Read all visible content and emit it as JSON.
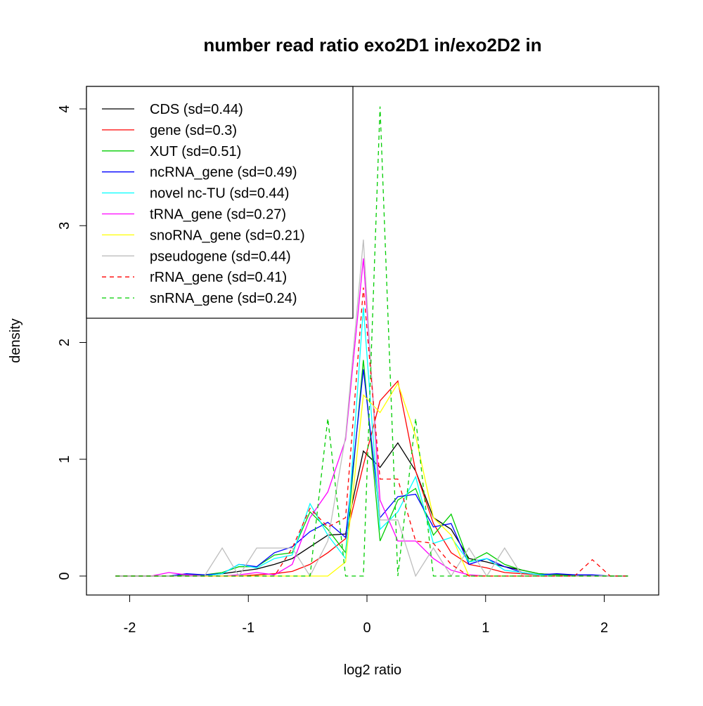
{
  "chart_data": {
    "type": "line",
    "title": "number read ratio exo2D1 in/exo2D2 in",
    "xlabel": "log2 ratio",
    "ylabel": "density",
    "xlim": [
      -2.35,
      2.45
    ],
    "ylim": [
      -0.17,
      4.2
    ],
    "xticks": [
      -2,
      -1,
      0,
      1,
      2
    ],
    "xtick_labels": [
      "-2",
      "-1",
      "0",
      "1",
      "2"
    ],
    "yticks": [
      0,
      1,
      2,
      3,
      4
    ],
    "ytick_labels": [
      "0",
      "1",
      "2",
      "3",
      "4"
    ],
    "grid": false,
    "legend_position": "top-left",
    "x": [
      -2.12,
      -1.97,
      -1.82,
      -1.67,
      -1.52,
      -1.37,
      -1.22,
      -1.08,
      -0.93,
      -0.78,
      -0.63,
      -0.48,
      -0.33,
      -0.18,
      -0.03,
      0.11,
      0.26,
      0.41,
      0.56,
      0.71,
      0.86,
      1.01,
      1.16,
      1.31,
      1.45,
      1.6,
      1.75,
      1.9,
      2.05,
      2.2
    ],
    "series": [
      {
        "name": "CDS (sd=0.44)",
        "color": "#000000",
        "dash": false,
        "values": [
          0,
          0,
          0,
          0,
          0,
          0,
          0.02,
          0.04,
          0.06,
          0.1,
          0.15,
          0.25,
          0.35,
          0.36,
          1.07,
          0.93,
          1.14,
          0.9,
          0.5,
          0.4,
          0.15,
          0.12,
          0.08,
          0.05,
          0.02,
          0.01,
          0.01,
          0,
          0,
          0
        ]
      },
      {
        "name": "gene (sd=0.3)",
        "color": "#ff0000",
        "dash": false,
        "values": [
          0,
          0,
          0,
          0,
          0,
          0,
          0,
          0,
          0.01,
          0.02,
          0.04,
          0.1,
          0.2,
          0.32,
          0.95,
          1.5,
          1.67,
          0.9,
          0.45,
          0.2,
          0.1,
          0.07,
          0.03,
          0.02,
          0.01,
          0,
          0,
          0,
          0,
          0
        ]
      },
      {
        "name": "XUT (sd=0.51)",
        "color": "#00cd00",
        "dash": false,
        "values": [
          0,
          0,
          0,
          0,
          0.01,
          0.01,
          0.03,
          0.08,
          0.08,
          0.18,
          0.2,
          0.55,
          0.4,
          0.2,
          1.85,
          0.3,
          0.65,
          0.75,
          0.35,
          0.53,
          0.12,
          0.2,
          0.1,
          0.05,
          0.02,
          0.01,
          0,
          0,
          0,
          0
        ]
      },
      {
        "name": "ncRNA_gene (sd=0.49)",
        "color": "#0000ff",
        "dash": false,
        "values": [
          0,
          0,
          0,
          0,
          0.02,
          0.01,
          0.02,
          0.1,
          0.08,
          0.2,
          0.25,
          0.38,
          0.46,
          0.33,
          1.77,
          0.5,
          0.68,
          0.7,
          0.42,
          0.45,
          0.1,
          0.15,
          0.08,
          0.03,
          0.01,
          0.02,
          0.01,
          0.01,
          0,
          0
        ]
      },
      {
        "name": "novel nc-TU (sd=0.44)",
        "color": "#00ffff",
        "dash": false,
        "values": [
          0,
          0,
          0,
          0,
          0,
          0,
          0.02,
          0.1,
          0.07,
          0.15,
          0.18,
          0.62,
          0.35,
          0.15,
          2.3,
          0.4,
          0.55,
          0.85,
          0.28,
          0.33,
          0.12,
          0.15,
          0.05,
          0.03,
          0.01,
          0,
          0,
          0,
          0,
          0
        ]
      },
      {
        "name": "tRNA_gene (sd=0.27)",
        "color": "#ff00ff",
        "dash": false,
        "values": [
          0,
          0,
          0,
          0.03,
          0.01,
          0,
          0,
          0.01,
          0.03,
          0.01,
          0.1,
          0.5,
          0.72,
          1.17,
          2.72,
          0.65,
          0.3,
          0.3,
          0.15,
          0.05,
          0.01,
          0,
          0,
          0,
          0,
          0,
          0,
          0,
          0,
          0
        ]
      },
      {
        "name": "snoRNA_gene (sd=0.21)",
        "color": "#ffff00",
        "dash": false,
        "values": [
          0,
          0,
          0,
          0,
          0,
          0,
          0,
          0,
          0,
          0,
          0,
          0,
          0,
          0.12,
          1.55,
          1.4,
          1.65,
          1.2,
          0.5,
          0.35,
          0,
          0,
          0,
          0,
          0,
          0,
          0,
          0,
          0,
          0
        ]
      },
      {
        "name": "pseudogene (sd=0.44)",
        "color": "#bebebe",
        "dash": false,
        "values": [
          0,
          0,
          0,
          0,
          0,
          0,
          0.24,
          0,
          0.24,
          0.24,
          0.24,
          0,
          0.3,
          1.2,
          2.88,
          0.48,
          0.48,
          0,
          0.24,
          0,
          0.24,
          0,
          0.24,
          0,
          0,
          0,
          0,
          0,
          0,
          0
        ]
      },
      {
        "name": "rRNA_gene (sd=0.41)",
        "color": "#ff0000",
        "dash": true,
        "values": [
          0,
          0,
          0,
          0,
          0,
          0,
          0,
          0,
          0,
          0,
          0.24,
          0.58,
          0.42,
          0.5,
          2.47,
          0.83,
          0.83,
          0.3,
          0.28,
          0.1,
          0,
          0,
          0,
          0,
          0,
          0,
          0,
          0.14,
          0,
          0
        ]
      },
      {
        "name": "snRNA_gene (sd=0.24)",
        "color": "#00cd00",
        "dash": true,
        "values": [
          0,
          0,
          0,
          0,
          0,
          0,
          0,
          0,
          0,
          0,
          0,
          0,
          1.35,
          0,
          0,
          4.02,
          0,
          1.35,
          0,
          0,
          0,
          0,
          0,
          0,
          0,
          0,
          0,
          0,
          0,
          0
        ]
      }
    ]
  }
}
